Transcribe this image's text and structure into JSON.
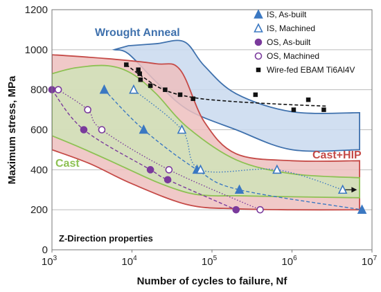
{
  "chart_data": {
    "type": "scatter",
    "xlabel": "Number of cycles to failure, Nf",
    "ylabel": "Maximum stress, MPa",
    "xscale": "log",
    "xlim": [
      1000,
      10000000
    ],
    "ylim": [
      0,
      1200
    ],
    "grid": "horizontal",
    "yticks": [
      "0",
      "200",
      "400",
      "600",
      "800",
      "1000",
      "1200"
    ],
    "xticks": [
      {
        "base": "10",
        "exp": "3"
      },
      {
        "base": "10",
        "exp": "4"
      },
      {
        "base": "10",
        "exp": "5"
      },
      {
        "base": "10",
        "exp": "6"
      },
      {
        "base": "10",
        "exp": "7"
      }
    ],
    "legend_position": "top-right",
    "annotations": {
      "wrought": "Wrought Anneal",
      "cast_hip": "Cast+HIP",
      "cast": "Cast",
      "z_direction": "Z-Direction properties"
    },
    "bands": [
      {
        "name": "Wrought Anneal",
        "fill": "#c9d9ef",
        "stroke": "#3f71ad",
        "upper": [
          [
            9000,
            1020
          ],
          [
            20000,
            1030
          ],
          [
            45000,
            1040
          ],
          [
            80000,
            920
          ],
          [
            200000,
            780
          ],
          [
            1000000,
            690
          ],
          [
            7000000,
            685
          ]
        ],
        "lower": [
          [
            7000000,
            500
          ],
          [
            1000000,
            500
          ],
          [
            200000,
            600
          ],
          [
            50000,
            700
          ],
          [
            20000,
            840
          ],
          [
            9000,
            980
          ],
          [
            6000,
            1000
          ]
        ]
      },
      {
        "name": "Cast+HIP",
        "fill": "#edc0be",
        "stroke": "#c54a47",
        "upper": [
          [
            1000,
            975
          ],
          [
            5000,
            955
          ],
          [
            20000,
            930
          ],
          [
            40000,
            900
          ],
          [
            80000,
            640
          ],
          [
            200000,
            480
          ],
          [
            1000000,
            445
          ],
          [
            7000000,
            445
          ]
        ],
        "lower": [
          [
            7000000,
            200
          ],
          [
            1000000,
            200
          ],
          [
            200000,
            205
          ],
          [
            50000,
            225
          ],
          [
            10000,
            330
          ],
          [
            3000,
            430
          ],
          [
            1000,
            500
          ]
        ]
      },
      {
        "name": "Cast",
        "fill": "#d0e3b8",
        "stroke": "#8dc153",
        "upper": [
          [
            1000,
            880
          ],
          [
            2000,
            910
          ],
          [
            5000,
            920
          ],
          [
            10000,
            880
          ],
          [
            20000,
            780
          ],
          [
            50000,
            610
          ],
          [
            200000,
            450
          ],
          [
            1000000,
            380
          ],
          [
            7000000,
            360
          ]
        ],
        "lower": [
          [
            7000000,
            260
          ],
          [
            1000000,
            265
          ],
          [
            200000,
            270
          ],
          [
            100000,
            270
          ],
          [
            50000,
            285
          ],
          [
            20000,
            340
          ],
          [
            5000,
            450
          ],
          [
            2000,
            520
          ],
          [
            1000,
            570
          ]
        ]
      }
    ],
    "series": [
      {
        "name": "IS, As-built",
        "marker": "triangle",
        "filled": true,
        "color": "#3b78c2",
        "trend": "dashed",
        "points": [
          [
            4500,
            800
          ],
          [
            14000,
            600
          ],
          [
            65000,
            400
          ],
          [
            220000,
            300
          ],
          [
            7500000,
            200
          ]
        ]
      },
      {
        "name": "IS, Machined",
        "marker": "triangle",
        "filled": false,
        "color": "#3b78c2",
        "trend": "dotted",
        "points": [
          [
            10500,
            800
          ],
          [
            42000,
            600
          ],
          [
            72000,
            400
          ],
          [
            650000,
            400
          ],
          [
            4300000,
            300
          ]
        ]
      },
      {
        "name": "OS, As-built",
        "marker": "circle",
        "filled": true,
        "color": "#7a3a9c",
        "trend": "dashed",
        "points": [
          [
            1000,
            800
          ],
          [
            2500,
            600
          ],
          [
            17000,
            400
          ],
          [
            28000,
            350
          ],
          [
            200000,
            200
          ]
        ]
      },
      {
        "name": "OS, Machined",
        "marker": "circle",
        "filled": false,
        "color": "#7a3a9c",
        "trend": "dotted",
        "points": [
          [
            1200,
            800
          ],
          [
            2800,
            700
          ],
          [
            4200,
            600
          ],
          [
            29000,
            400
          ],
          [
            400000,
            200
          ]
        ]
      },
      {
        "name": "Wire-fed EBAM Ti6Al4V",
        "marker": "square",
        "filled": true,
        "color": "#111111",
        "trend": "dashed",
        "points": [
          [
            8500,
            925
          ],
          [
            12000,
            900
          ],
          [
            12500,
            880
          ],
          [
            12800,
            850
          ],
          [
            17000,
            820
          ],
          [
            26000,
            800
          ],
          [
            40000,
            775
          ],
          [
            58000,
            755
          ],
          [
            350000,
            775
          ],
          [
            1050000,
            700
          ],
          [
            1600000,
            750
          ],
          [
            2500000,
            700
          ]
        ]
      }
    ],
    "runout_arrow": {
      "from": [
        4000000,
        300
      ],
      "to": [
        6500000,
        300
      ]
    }
  }
}
